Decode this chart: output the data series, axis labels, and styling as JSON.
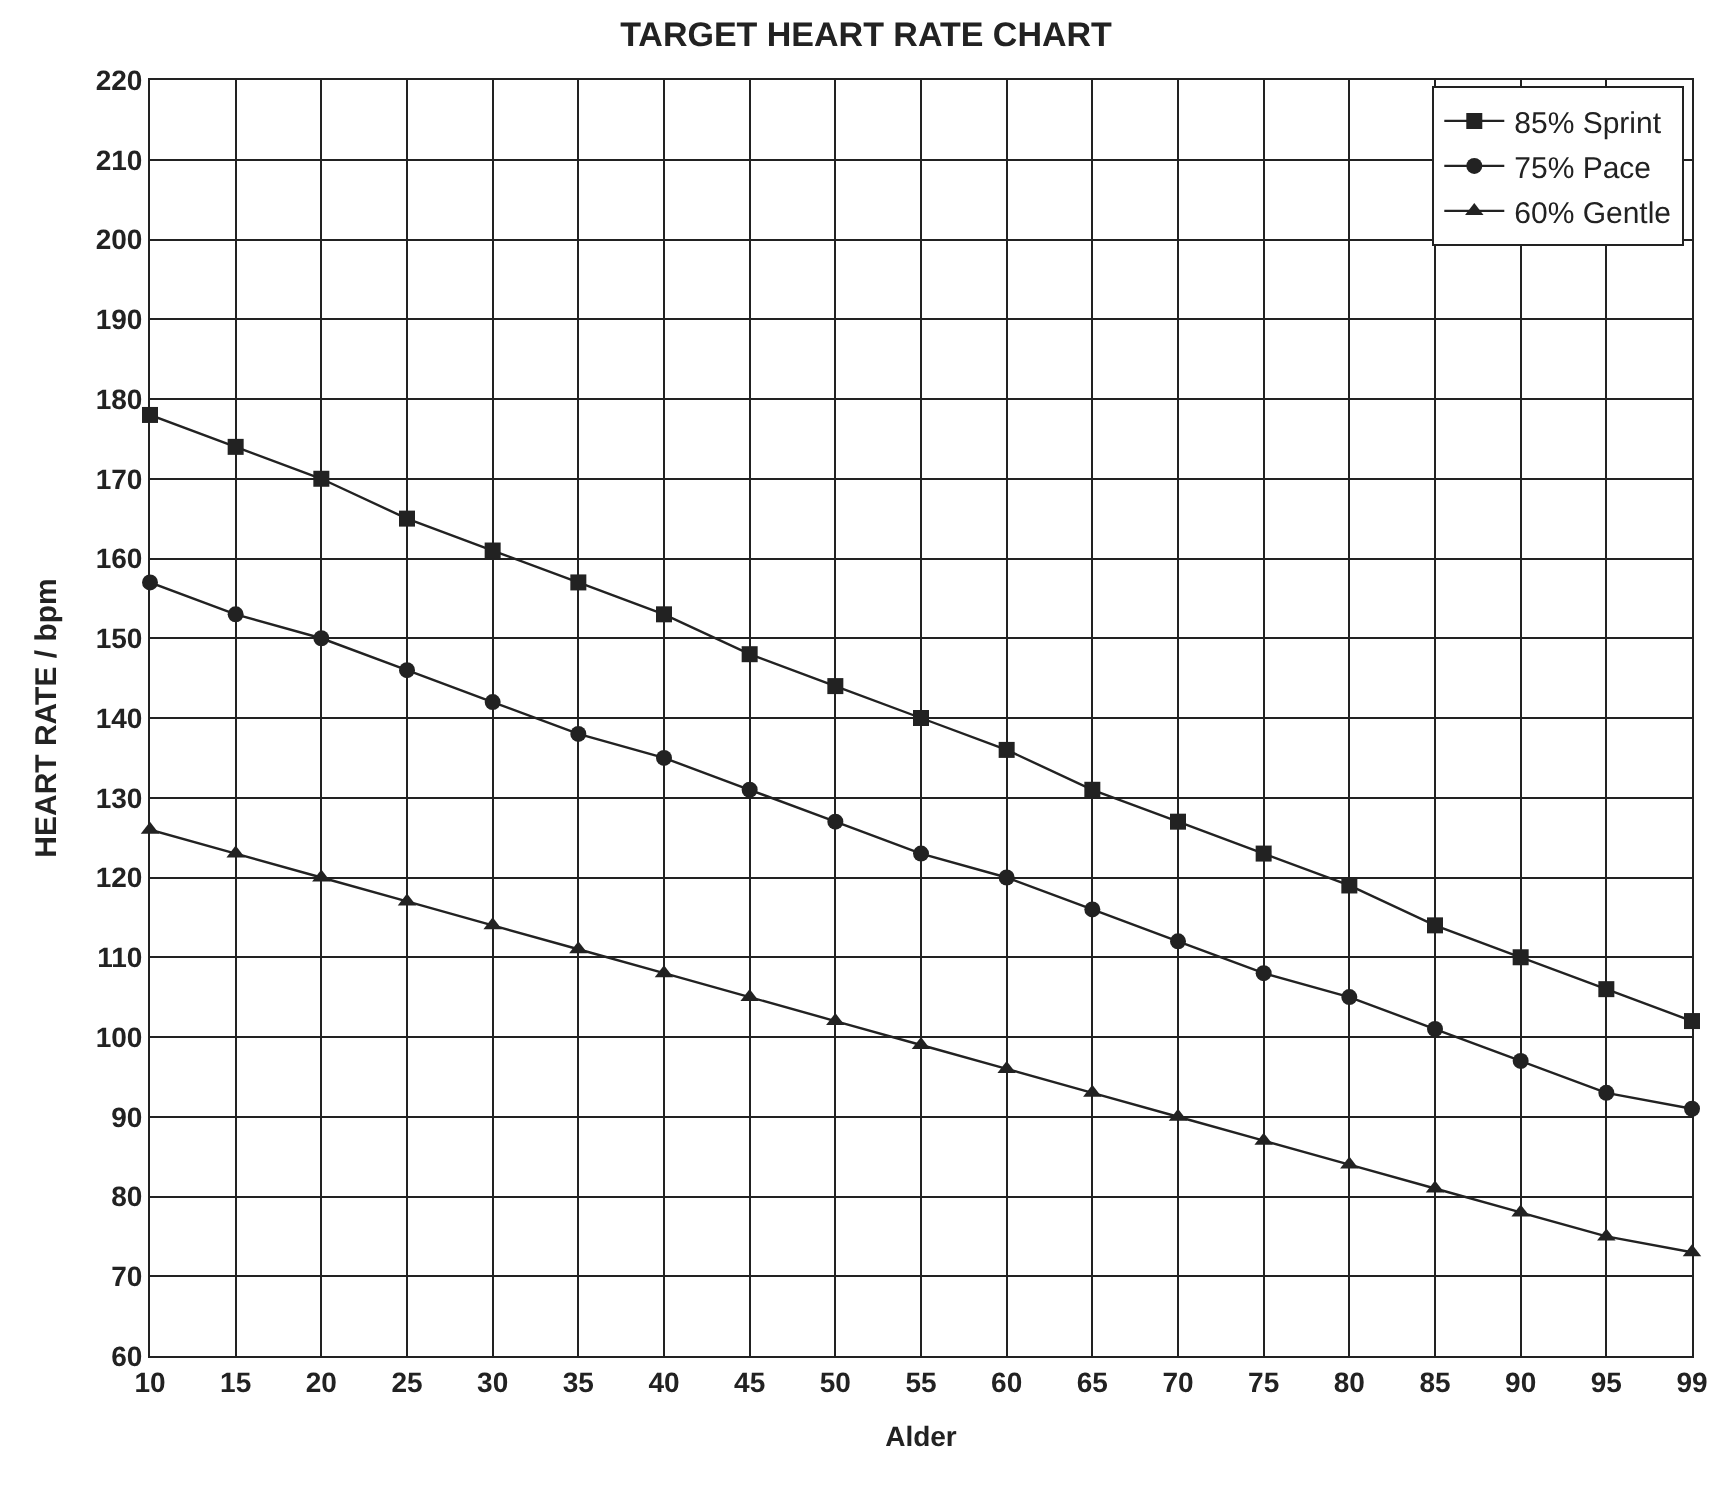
{
  "chart_data": {
    "type": "line",
    "title": "TARGET HEART RATE CHART",
    "xlabel": "Alder",
    "ylabel": "HEART RATE / bpm",
    "categories": [
      "10",
      "15",
      "20",
      "25",
      "30",
      "35",
      "40",
      "45",
      "50",
      "55",
      "60",
      "65",
      "70",
      "75",
      "80",
      "85",
      "90",
      "95",
      "99"
    ],
    "series": [
      {
        "name": "85% Sprint",
        "color": "#222222",
        "marker": "square",
        "values": [
          178,
          174,
          170,
          165,
          161,
          157,
          153,
          148,
          144,
          140,
          136,
          131,
          127,
          123,
          119,
          114,
          110,
          106,
          102
        ]
      },
      {
        "name": "75% Pace",
        "color": "#222222",
        "marker": "circle",
        "values": [
          157,
          153,
          150,
          146,
          142,
          138,
          135,
          131,
          127,
          123,
          120,
          116,
          112,
          108,
          105,
          101,
          97,
          93,
          91
        ]
      },
      {
        "name": "60% Gentle",
        "color": "#222222",
        "marker": "triangle",
        "values": [
          126,
          123,
          120,
          117,
          114,
          111,
          108,
          105,
          102,
          99,
          96,
          93,
          90,
          87,
          84,
          81,
          78,
          75,
          73
        ]
      }
    ],
    "ylim": [
      60,
      220
    ],
    "yticks": [
      60,
      70,
      80,
      90,
      100,
      110,
      120,
      130,
      140,
      150,
      160,
      170,
      180,
      190,
      200,
      210,
      220
    ],
    "grid": true,
    "legend": "top right",
    "line_style": "solid"
  }
}
